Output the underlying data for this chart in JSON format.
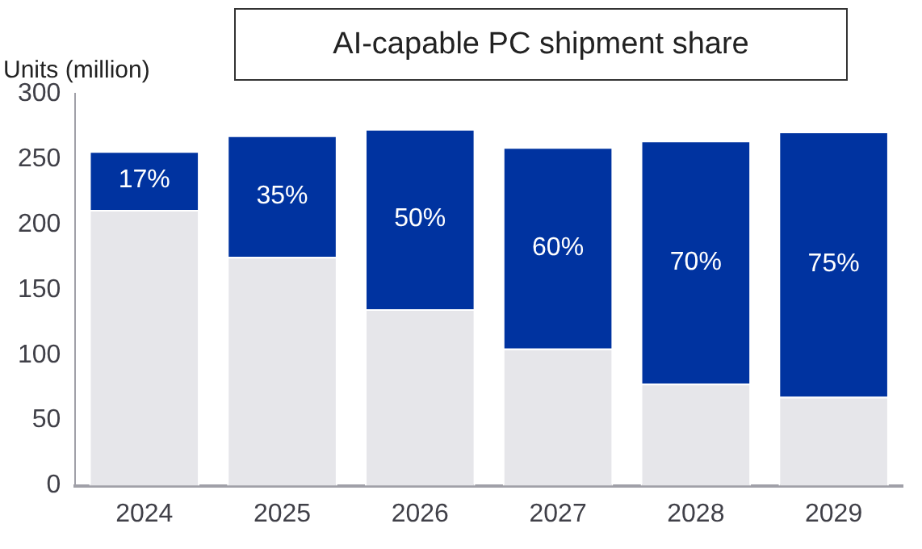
{
  "chart_data": {
    "type": "bar",
    "title": "AI-capable PC shipment share",
    "ylabel": "Units (million)",
    "stacked": true,
    "grid": false,
    "legend": false,
    "categories": [
      "2024",
      "2025",
      "2026",
      "2027",
      "2028",
      "2029"
    ],
    "series": [
      {
        "color": "#e6e6ea",
        "values": [
          211,
          175,
          135,
          105,
          78,
          68
        ]
      },
      {
        "color": "#0033a0",
        "values": [
          45,
          93,
          138,
          154,
          186,
          203
        ]
      }
    ],
    "annotations": [
      "17%",
      "35%",
      "50%",
      "60%",
      "70%",
      "75%"
    ],
    "ylim": [
      0,
      300
    ],
    "yticks": [
      0,
      50,
      100,
      150,
      200,
      250,
      300
    ]
  }
}
